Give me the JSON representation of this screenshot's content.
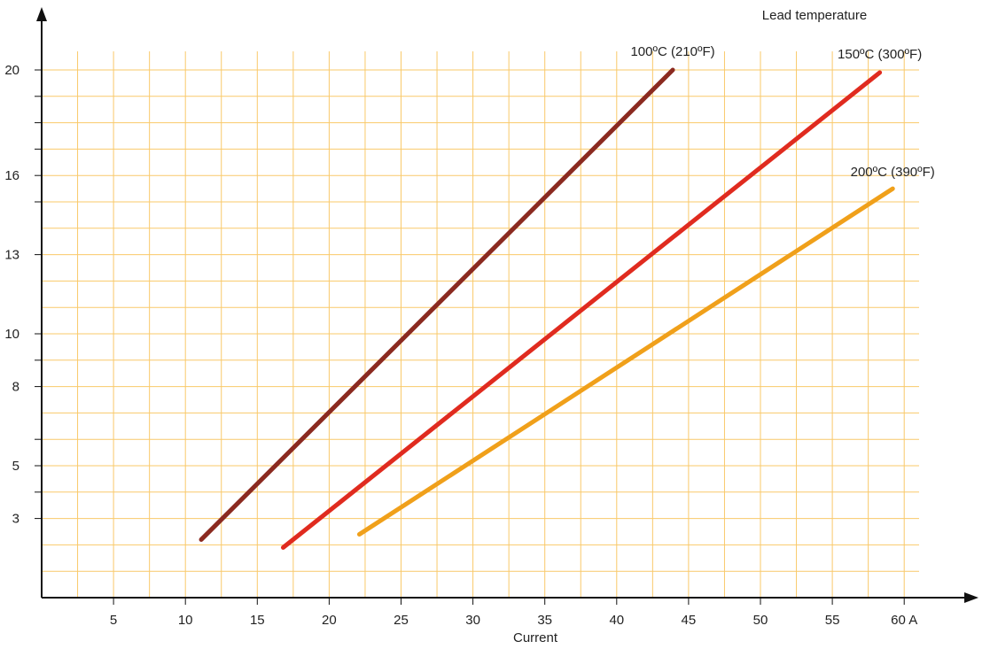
{
  "chart_data": {
    "type": "line",
    "title": "",
    "legend_title": "Lead temperature",
    "xlabel": "Current",
    "ylabel": "",
    "xlim": [
      0,
      62
    ],
    "ylim": [
      0,
      22
    ],
    "x_ticks": [
      {
        "v": 5,
        "label": "5"
      },
      {
        "v": 10,
        "label": "10"
      },
      {
        "v": 15,
        "label": "15"
      },
      {
        "v": 20,
        "label": "20"
      },
      {
        "v": 25,
        "label": "25"
      },
      {
        "v": 30,
        "label": "30"
      },
      {
        "v": 35,
        "label": "35"
      },
      {
        "v": 40,
        "label": "40"
      },
      {
        "v": 45,
        "label": "45"
      },
      {
        "v": 50,
        "label": "50"
      },
      {
        "v": 55,
        "label": "55"
      },
      {
        "v": 60,
        "label": "60 A"
      }
    ],
    "y_grid": [
      1,
      2,
      3,
      4,
      5,
      6,
      7,
      8,
      9,
      10,
      11,
      12,
      13,
      14,
      15,
      16,
      17,
      18,
      19,
      20
    ],
    "y_labeled_ticks": [
      {
        "v": 3,
        "label": "3"
      },
      {
        "v": 5,
        "label": "5"
      },
      {
        "v": 8,
        "label": "8"
      },
      {
        "v": 10,
        "label": "10"
      },
      {
        "v": 13,
        "label": "13"
      },
      {
        "v": 16,
        "label": "16"
      },
      {
        "v": 20,
        "label": "20"
      }
    ],
    "y_minor_ticks": [
      4,
      6,
      9,
      15,
      17,
      18,
      19
    ],
    "grid": true,
    "grid_color": "#f9c96a",
    "series": [
      {
        "name": "100ºC (210ºF)",
        "color": "#8b2a20",
        "x": [
          11.1,
          43.9
        ],
        "y": [
          2.2,
          20.0
        ]
      },
      {
        "name": "150ºC (300ºF)",
        "color": "#e02b1f",
        "x": [
          16.8,
          58.3
        ],
        "y": [
          1.9,
          19.9
        ]
      },
      {
        "name": "200ºC (390ºF)",
        "color": "#f0a01a",
        "x": [
          22.1,
          59.2
        ],
        "y": [
          2.4,
          15.5
        ]
      }
    ]
  }
}
